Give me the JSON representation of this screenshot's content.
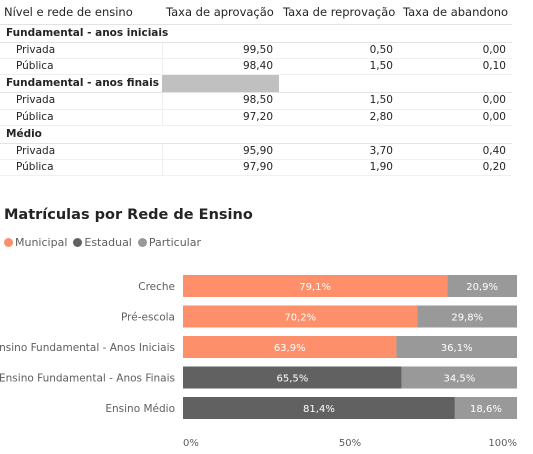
{
  "table": {
    "headers": [
      "Nível e rede de ensino",
      "Taxa de aprovação",
      "Taxa de reprovação",
      "Taxa de abandono"
    ],
    "groups": [
      {
        "name": "Fundamental - anos iniciais",
        "rows": [
          {
            "label": "Privada",
            "aprovacao": "99,50",
            "reprovacao": "0,50",
            "abandono": "0,00"
          },
          {
            "label": "Pública",
            "aprovacao": "98,40",
            "reprovacao": "1,50",
            "abandono": "0,10"
          }
        ]
      },
      {
        "name": "Fundamental - anos finais",
        "rows": [
          {
            "label": "Privada",
            "aprovacao": "98,50",
            "reprovacao": "1,50",
            "abandono": "0,00"
          },
          {
            "label": "Pública",
            "aprovacao": "97,20",
            "reprovacao": "2,80",
            "abandono": "0,00"
          }
        ]
      },
      {
        "name": "Médio",
        "rows": [
          {
            "label": "Privada",
            "aprovacao": "95,90",
            "reprovacao": "3,70",
            "abandono": "0,40"
          },
          {
            "label": "Pública",
            "aprovacao": "97,90",
            "reprovacao": "1,90",
            "abandono": "0,20"
          }
        ]
      }
    ]
  },
  "chart_data": {
    "type": "bar",
    "orientation": "horizontal",
    "stacked": "100%",
    "title": "Matrículas por Rede de Ensino",
    "categories": [
      "Creche",
      "Pré-escola",
      "Ensino Fundamental - Anos Iniciais",
      "Ensino Fundamental - Anos Finais",
      "Ensino Médio"
    ],
    "series": [
      {
        "name": "Municipal",
        "color": "#fd8f6a",
        "values": [
          79.1,
          70.2,
          63.9,
          0,
          0
        ],
        "labels": [
          "79,1%",
          "70,2%",
          "63,9%",
          "",
          ""
        ]
      },
      {
        "name": "Estadual",
        "color": "#616161",
        "values": [
          0,
          0,
          0,
          65.5,
          81.4
        ],
        "labels": [
          "",
          "",
          "",
          "65,5%",
          "81,4%"
        ]
      },
      {
        "name": "Particular",
        "color": "#999999",
        "values": [
          20.9,
          29.8,
          36.1,
          34.5,
          18.6
        ],
        "labels": [
          "20,9%",
          "29,8%",
          "36,1%",
          "34,5%",
          "18,6%"
        ]
      }
    ],
    "xlim": [
      0,
      100
    ],
    "xticks": [
      "0%",
      "50%",
      "100%"
    ],
    "legend_position": "top-left",
    "grid": false
  }
}
